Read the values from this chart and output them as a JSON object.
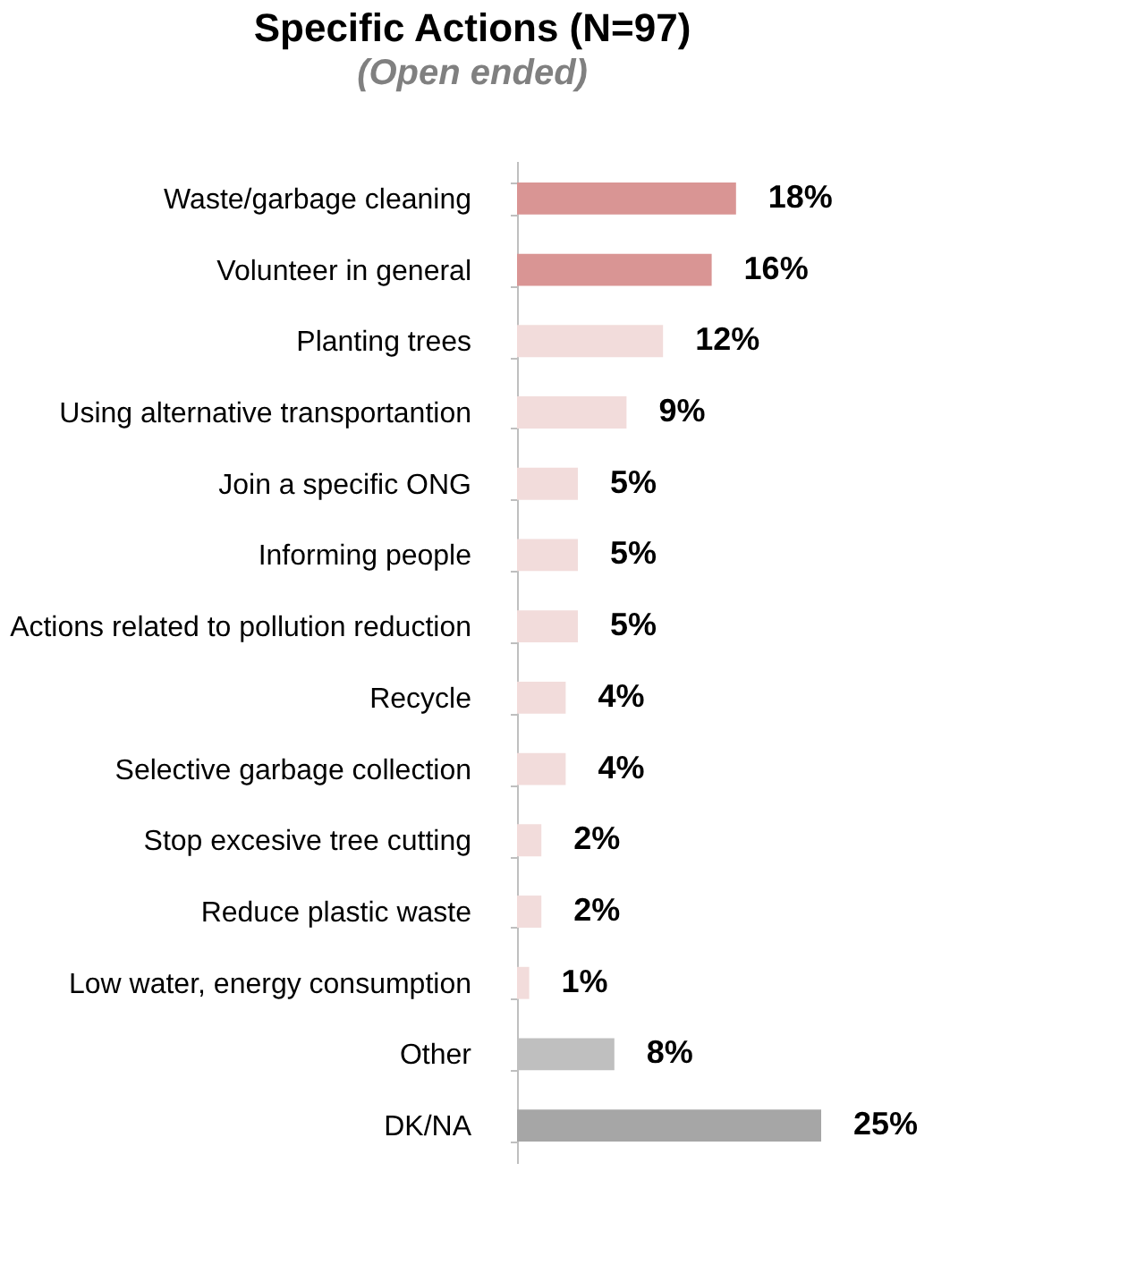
{
  "chart_data": {
    "type": "bar",
    "orientation": "horizontal",
    "title": "Specific Actions (N=97)",
    "subtitle": "(Open ended)",
    "categories": [
      "Waste/garbage cleaning",
      "Volunteer in general",
      "Planting trees",
      "Using alternative transportantion",
      "Join a specific ONG",
      "Informing people",
      "Actions related to pollution reduction",
      "Recycle",
      "Selective garbage collection",
      "Stop excesive tree cutting",
      "Reduce plastic waste",
      "Low water, energy consumption",
      "Other",
      "DK/NA"
    ],
    "values": [
      18,
      16,
      12,
      9,
      5,
      5,
      5,
      4,
      4,
      2,
      2,
      1,
      8,
      25
    ],
    "colors": [
      "#d99594",
      "#d99594",
      "#f2dcdb",
      "#f2dcdb",
      "#f2dcdb",
      "#f2dcdb",
      "#f2dcdb",
      "#f2dcdb",
      "#f2dcdb",
      "#f2dcdb",
      "#f2dcdb",
      "#f2dcdb",
      "#bfbfbf",
      "#a6a6a6"
    ],
    "value_labels": [
      "18%",
      "16%",
      "12%",
      "9%",
      "5%",
      "5%",
      "5%",
      "4%",
      "4%",
      "2%",
      "2%",
      "1%",
      "8%",
      "25%"
    ],
    "grid": false
  }
}
